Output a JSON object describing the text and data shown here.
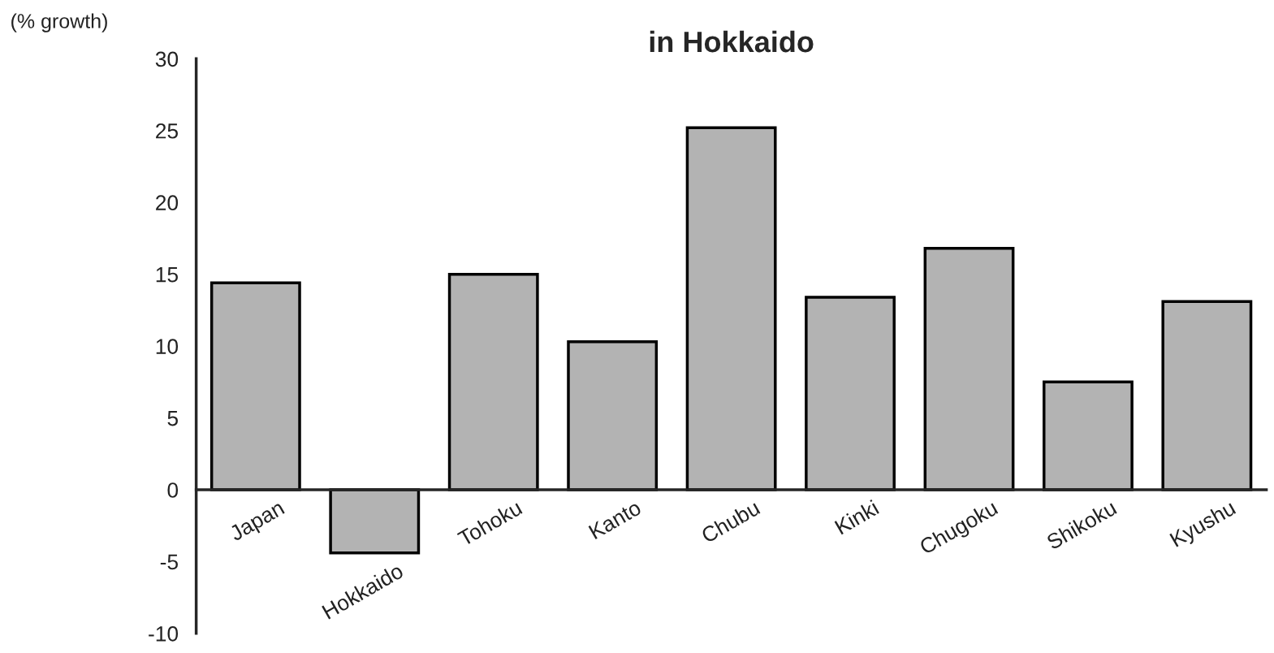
{
  "chart_data": {
    "type": "bar",
    "title": "in Hokkaido",
    "ylabel": "(% growth)",
    "categories": [
      "Japan",
      "Hokkaido",
      "Tohoku",
      "Kanto",
      "Chubu",
      "Kinki",
      "Chugoku",
      "Shikoku",
      "Kyushu"
    ],
    "values": [
      14.4,
      -4.4,
      15.0,
      10.3,
      25.2,
      13.4,
      16.8,
      7.5,
      13.1
    ],
    "color": "#b3b3b3",
    "ylim": [
      -10,
      30
    ],
    "yticks": [
      -10,
      -5,
      0,
      5,
      10,
      15,
      20,
      25,
      30
    ],
    "grid": false
  }
}
